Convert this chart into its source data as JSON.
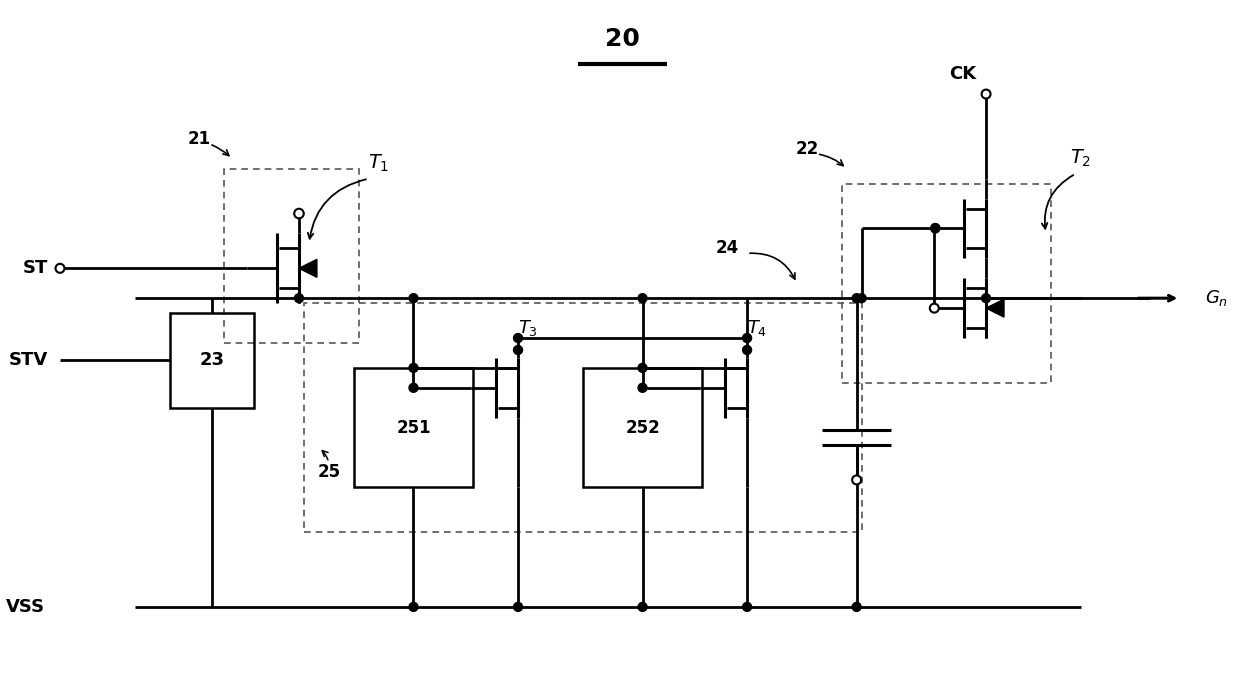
{
  "title": "20",
  "bg_color": "#ffffff",
  "line_color": "#000000",
  "figsize": [
    12.4,
    6.83
  ],
  "dpi": 100,
  "xlim": [
    0,
    124
  ],
  "ylim": [
    0,
    68.3
  ],
  "bus_y": 38.5,
  "vss_y": 7.5
}
